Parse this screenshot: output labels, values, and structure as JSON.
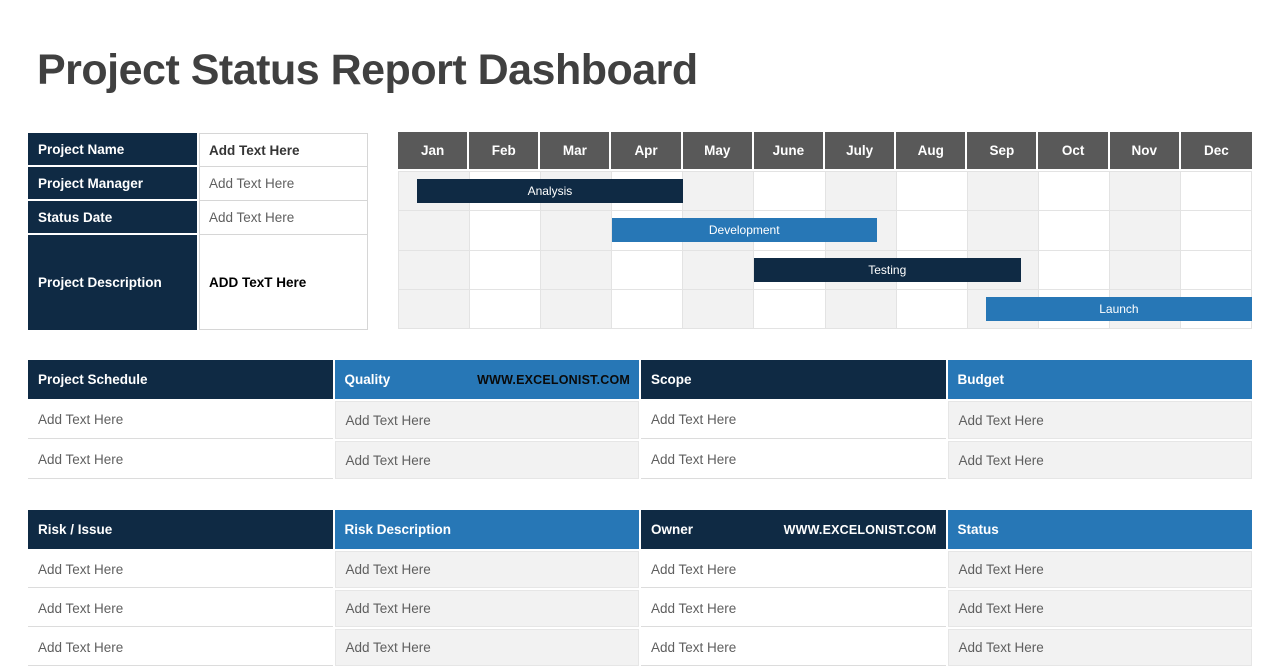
{
  "page": {
    "title": "Project Status Report Dashboard"
  },
  "colors": {
    "navy": "#0F2A44",
    "blue": "#2777B6",
    "month_header_gray": "#595959",
    "shaded_cell": "#F2F2F2",
    "grid_line": "#E3E3E3",
    "title_gray": "#404040",
    "placeholder_text_gray": "#5F5F5F"
  },
  "info_panel": {
    "rows": [
      {
        "label": "Project Name",
        "value": "Add Text Here"
      },
      {
        "label": "Project Manager",
        "value": "Add Text Here"
      },
      {
        "label": "Status Date",
        "value": "Add Text Here"
      },
      {
        "label": "Project Description",
        "value": "ADD TexT Here"
      }
    ]
  },
  "gantt": {
    "months": [
      "Jan",
      "Feb",
      "Mar",
      "Apr",
      "May",
      "June",
      "July",
      "Aug",
      "Sep",
      "Oct",
      "Nov",
      "Dec"
    ],
    "rows": 4,
    "tasks": [
      {
        "label": "Analysis",
        "row": 0,
        "start_month": 0.27,
        "end_month": 4.0,
        "color": "navy"
      },
      {
        "label": "Development",
        "row": 1,
        "start_month": 3.0,
        "end_month": 6.73,
        "color": "blue"
      },
      {
        "label": "Testing",
        "row": 2,
        "start_month": 5.0,
        "end_month": 8.75,
        "color": "navy"
      },
      {
        "label": "Launch",
        "row": 3,
        "start_month": 8.26,
        "end_month": 12.0,
        "color": "blue"
      }
    ]
  },
  "status_table": {
    "columns": [
      {
        "header": "Project Schedule",
        "header_style": "navy"
      },
      {
        "header": "Quality",
        "header_style": "blue",
        "watermark": "WWW.EXCELONIST.COM"
      },
      {
        "header": "Scope",
        "header_style": "navy"
      },
      {
        "header": "Budget",
        "header_style": "blue"
      }
    ],
    "rows": [
      [
        "Add Text Here",
        "Add Text Here",
        "Add Text Here",
        "Add Text Here"
      ],
      [
        "Add Text Here",
        "Add Text Here",
        "Add Text Here",
        "Add Text Here"
      ]
    ]
  },
  "risk_table": {
    "columns": [
      {
        "header": "Risk / Issue",
        "header_style": "navy"
      },
      {
        "header": "Risk Description",
        "header_style": "blue"
      },
      {
        "header": "Owner",
        "header_style": "navy",
        "watermark": "WWW.EXCELONIST.COM"
      },
      {
        "header": "Status",
        "header_style": "blue"
      }
    ],
    "rows": [
      [
        "Add Text Here",
        "Add Text Here",
        "Add Text Here",
        "Add Text Here"
      ],
      [
        "Add Text Here",
        "Add Text Here",
        "Add Text Here",
        "Add Text Here"
      ],
      [
        "Add Text Here",
        "Add Text Here",
        "Add Text Here",
        "Add Text Here"
      ]
    ]
  }
}
